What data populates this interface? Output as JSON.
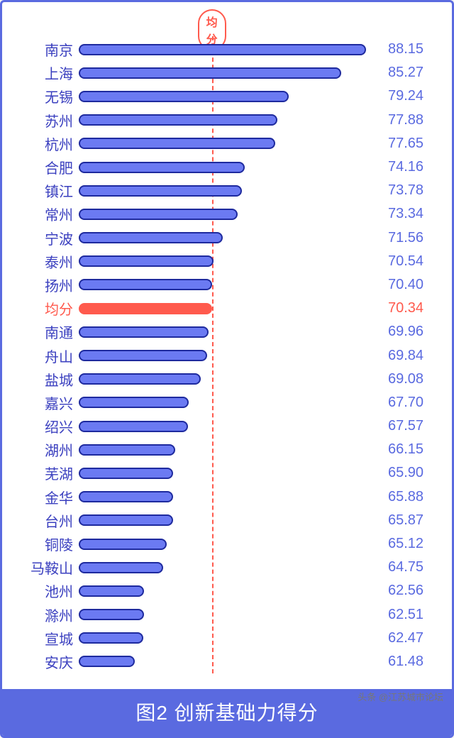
{
  "chart": {
    "type": "bar",
    "title": "图2 创新基础力得分",
    "avg_label": "均分",
    "avg_value": 70.34,
    "value_min": 55,
    "value_max": 90,
    "card_border_color": "#5a6ae0",
    "footer_bg": "#5a6ae0",
    "avg_color": "#ff5a4d",
    "bar_fill": "#6b7af2",
    "bar_border": "#1e2a9e",
    "text_color": "#3a3fbf",
    "value_color": "#5a6ae0",
    "label_fontsize": 20,
    "value_fontsize": 20,
    "title_fontsize": 28,
    "rows": [
      {
        "label": "南京",
        "value": 88.15
      },
      {
        "label": "上海",
        "value": 85.27
      },
      {
        "label": "无锡",
        "value": 79.24
      },
      {
        "label": "苏州",
        "value": 77.88
      },
      {
        "label": "杭州",
        "value": 77.65
      },
      {
        "label": "合肥",
        "value": 74.16
      },
      {
        "label": "镇江",
        "value": 73.78
      },
      {
        "label": "常州",
        "value": 73.34
      },
      {
        "label": "宁波",
        "value": 71.56
      },
      {
        "label": "泰州",
        "value": 70.54
      },
      {
        "label": "扬州",
        "value": 70.4
      },
      {
        "label": "均分",
        "value": 70.34,
        "is_avg": true
      },
      {
        "label": "南通",
        "value": 69.96
      },
      {
        "label": "舟山",
        "value": 69.84
      },
      {
        "label": "盐城",
        "value": 69.08
      },
      {
        "label": "嘉兴",
        "value": 67.7
      },
      {
        "label": "绍兴",
        "value": 67.57
      },
      {
        "label": "湖州",
        "value": 66.15
      },
      {
        "label": "芜湖",
        "value": 65.9
      },
      {
        "label": "金华",
        "value": 65.88
      },
      {
        "label": "台州",
        "value": 65.87
      },
      {
        "label": "铜陵",
        "value": 65.12
      },
      {
        "label": "马鞍山",
        "value": 64.75
      },
      {
        "label": "池州",
        "value": 62.56
      },
      {
        "label": "滁州",
        "value": 62.51
      },
      {
        "label": "宣城",
        "value": 62.47
      },
      {
        "label": "安庆",
        "value": 61.48
      }
    ]
  },
  "source": "头条 @江苏城市论坛"
}
